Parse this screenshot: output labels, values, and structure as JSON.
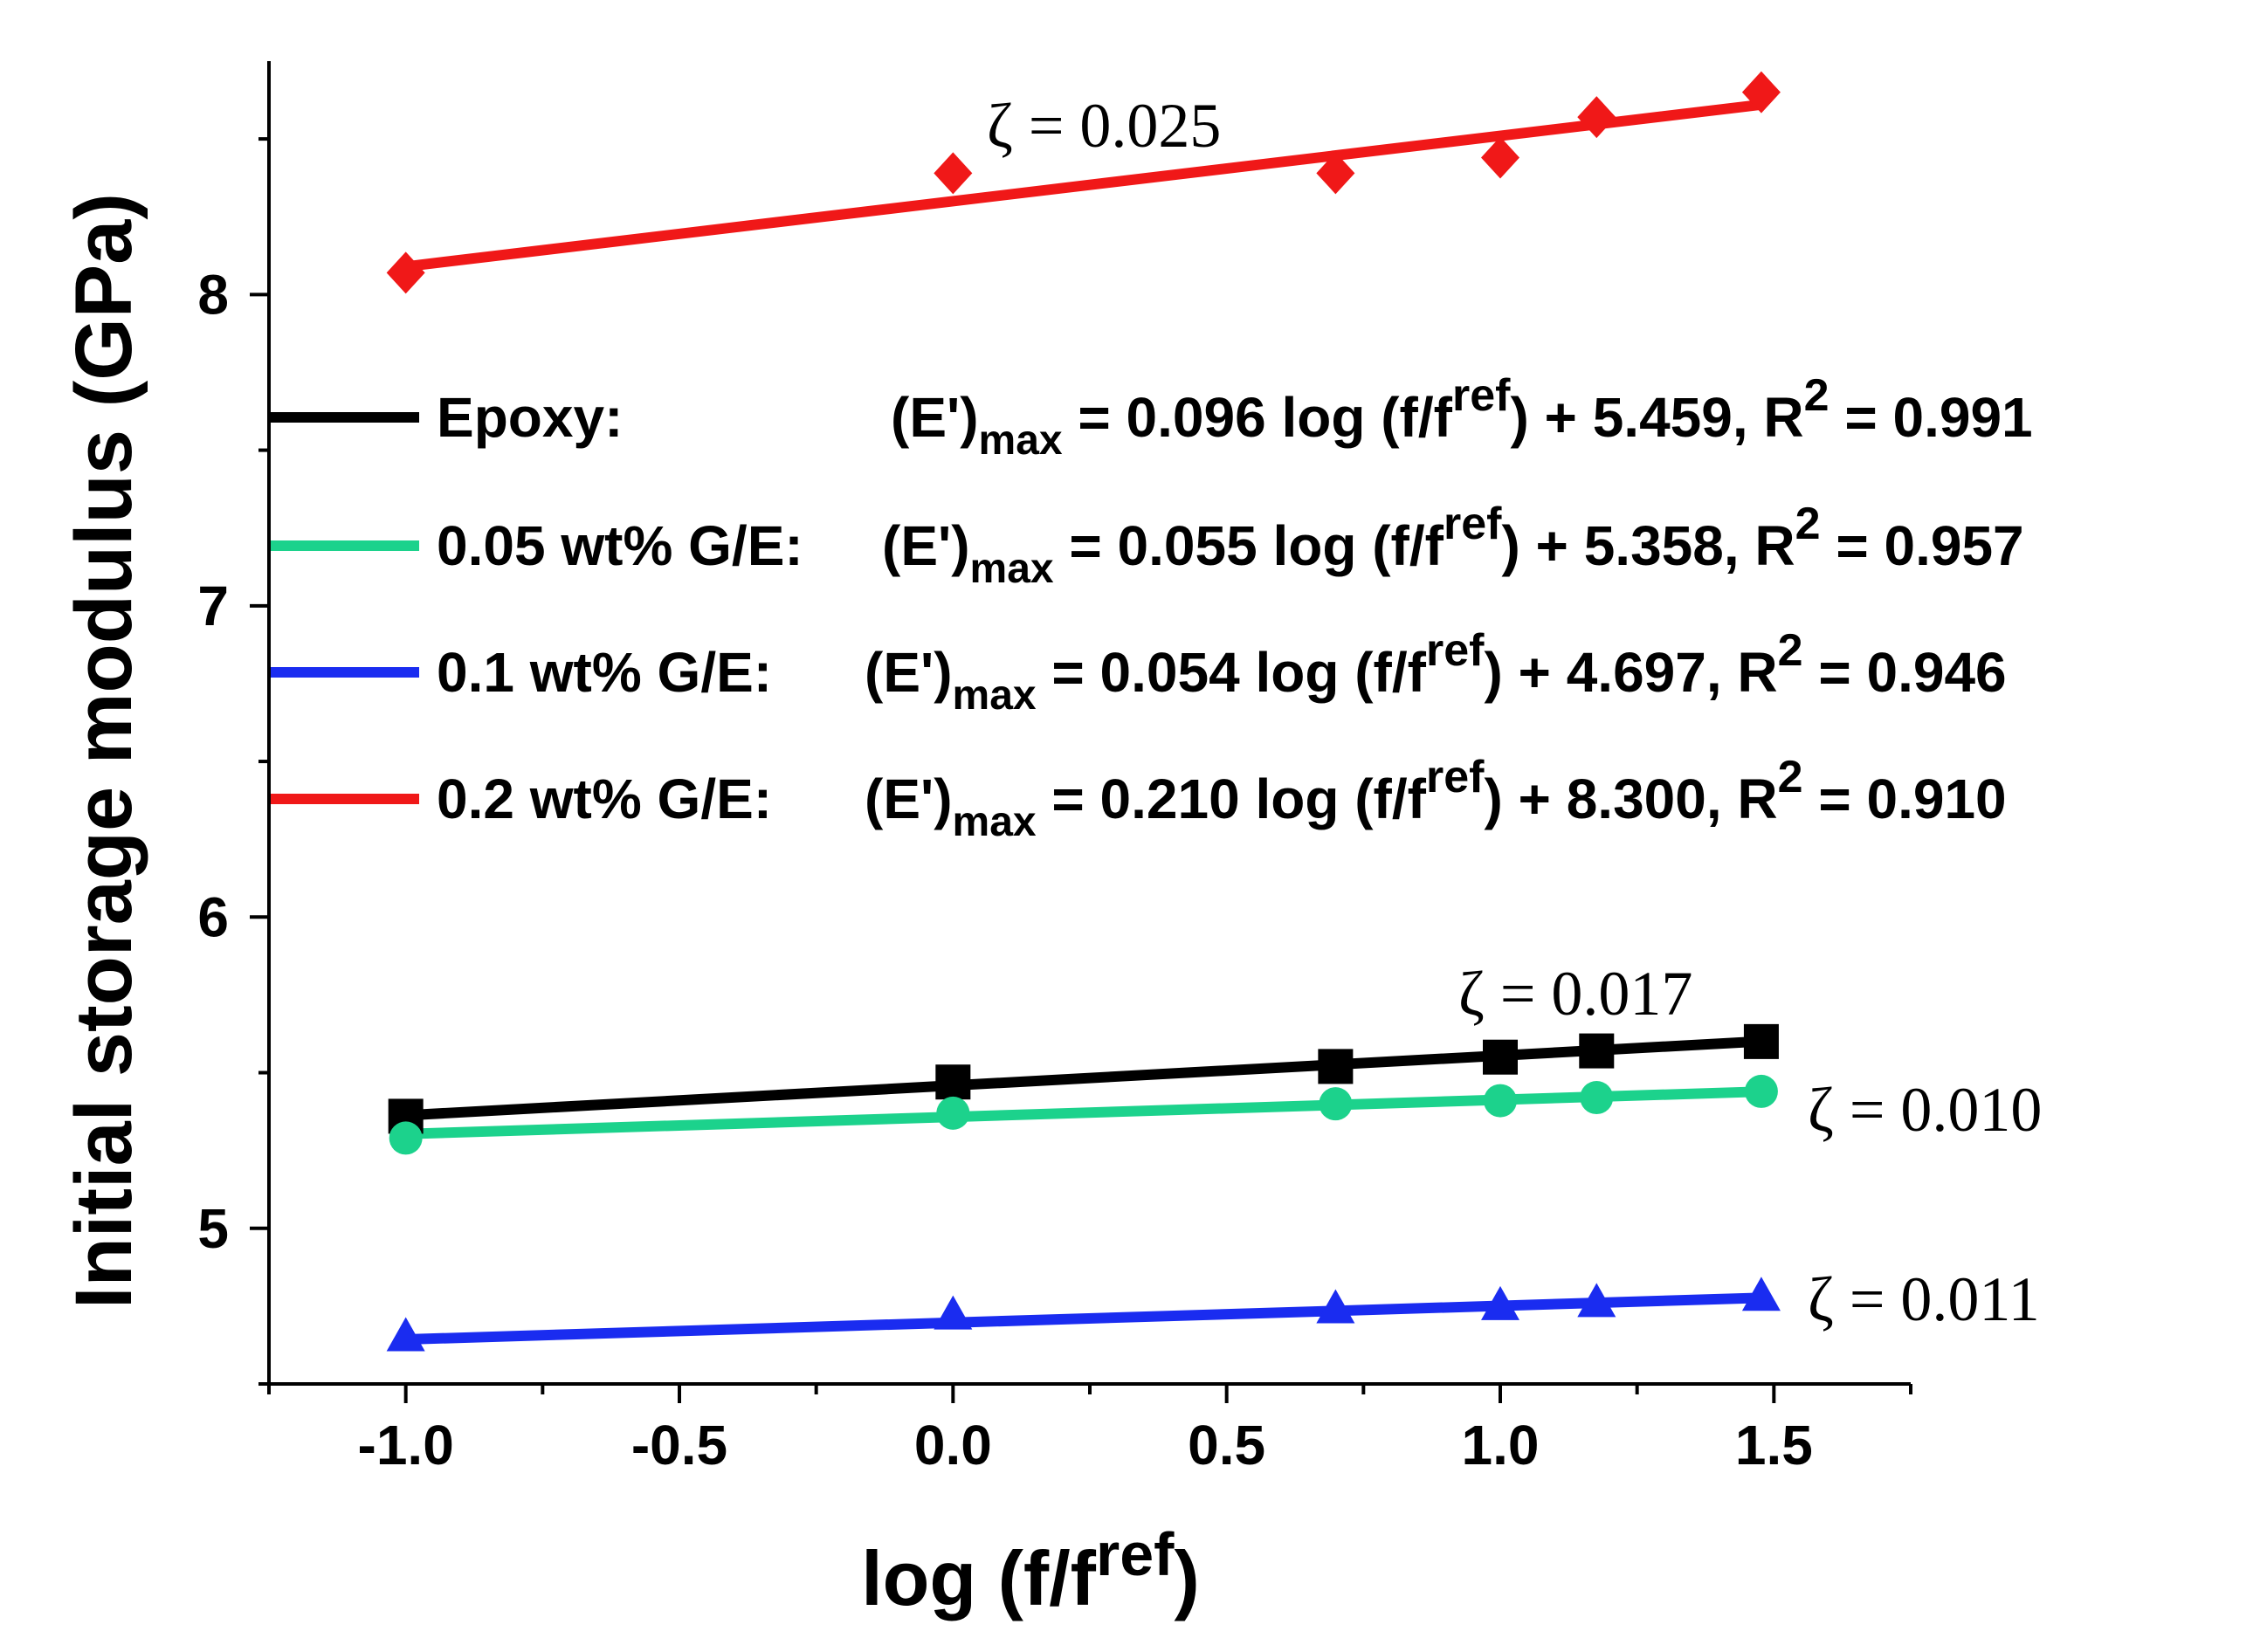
{
  "chart_data": {
    "type": "scatter",
    "title": "",
    "xlabel": "log (f/f",
    "xlabel_sup": "ref",
    "xlabel_close": ")",
    "ylabel": "Initial storage modulus (GPa)",
    "xlim": [
      -1.25,
      1.75
    ],
    "ylim": [
      4.5,
      8.75
    ],
    "x_ticks": [
      -1.0,
      -0.5,
      0.0,
      0.5,
      1.0,
      1.5
    ],
    "x_tick_labels": [
      "-1.0",
      "-0.5",
      "0.0",
      "0.5",
      "1.0",
      "1.5"
    ],
    "x_minor_ticks": [
      -1.25,
      -0.75,
      -0.25,
      0.25,
      0.75,
      1.25,
      1.75
    ],
    "y_ticks": [
      5,
      6,
      7,
      8
    ],
    "y_tick_labels": [
      "5",
      "6",
      "7",
      "8"
    ],
    "y_minor_ticks": [
      4.5,
      5.5,
      6.5,
      7.5,
      8.5
    ],
    "x": [
      -1.0,
      0.0,
      0.699,
      1.0,
      1.176,
      1.477
    ],
    "series": [
      {
        "name": "Epoxy",
        "color": "#000000",
        "marker": "square",
        "values": [
          5.36,
          5.47,
          5.52,
          5.55,
          5.57,
          5.6
        ],
        "fit": {
          "slope": 0.096,
          "intercept": 5.459
        },
        "legend": {
          "label": "Epoxy:",
          "expr_pre": "(E')",
          "expr_sub": "max",
          "expr_mid": " = 0.096 log (f/f",
          "expr_sup": "ref",
          "expr_post": ") + 5.459, R",
          "r_sup": "2",
          "r_val": " = 0.991"
        },
        "annotation": "ζ = 0.017"
      },
      {
        "name": "0.05 wt% G/E",
        "color": "#1cd28c",
        "marker": "circle",
        "values": [
          5.29,
          5.37,
          5.4,
          5.41,
          5.42,
          5.44
        ],
        "fit": {
          "slope": 0.055,
          "intercept": 5.358
        },
        "legend": {
          "label": "0.05 wt% G/E:",
          "expr_pre": "(E')",
          "expr_sub": "max",
          "expr_mid": " = 0.055 log (f/f",
          "expr_sup": "ref",
          "expr_post": ") + 5.358, R",
          "r_sup": "2",
          "r_val": " = 0.957"
        },
        "annotation": "ζ = 0.010"
      },
      {
        "name": "0.1 wt% G/E",
        "color": "#1a2cf0",
        "marker": "triangle",
        "values": [
          4.65,
          4.72,
          4.74,
          4.75,
          4.76,
          4.78
        ],
        "fit": {
          "slope": 0.054,
          "intercept": 4.697
        },
        "legend": {
          "label": "0.1 wt% G/E:",
          "expr_pre": "(E')",
          "expr_sub": "max",
          "expr_mid": " = 0.054 log (f/f",
          "expr_sup": "ref",
          "expr_post": ") + 4.697,  R",
          "r_sup": "2",
          "r_val": " = 0.946"
        },
        "annotation": "ζ = 0.011"
      },
      {
        "name": "0.2 wt% G/E",
        "color": "#f01818",
        "marker": "diamond",
        "values": [
          8.07,
          8.39,
          8.39,
          8.44,
          8.57,
          8.65
        ],
        "fit": {
          "slope": 0.21,
          "intercept": 8.3
        },
        "legend": {
          "label": "0.2 wt% G/E:",
          "expr_pre": "(E')",
          "expr_sub": "max",
          "expr_mid": " = 0.210 log (f/f",
          "expr_sup": "ref",
          "expr_post": ") + 8.300, R",
          "r_sup": "2",
          "r_val": " = 0.910"
        },
        "annotation": "ζ = 0.025"
      }
    ],
    "legend_position": "center"
  }
}
